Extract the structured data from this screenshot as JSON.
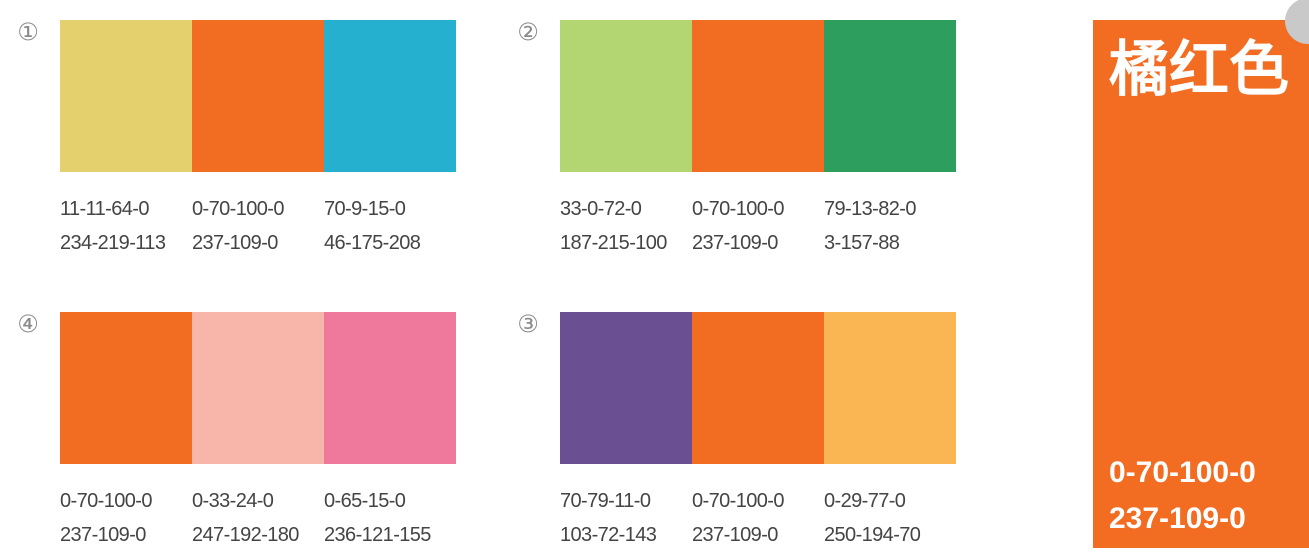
{
  "groups": [
    {
      "number": "①",
      "swatches": [
        {
          "color": "#E4D16E",
          "cmyk": "11-11-64-0",
          "rgb": "234-219-113"
        },
        {
          "color": "#F26C21",
          "cmyk": "0-70-100-0",
          "rgb": "237-109-0"
        },
        {
          "color": "#26B0CF",
          "cmyk": "70-9-15-0",
          "rgb": "46-175-208"
        }
      ]
    },
    {
      "number": "②",
      "swatches": [
        {
          "color": "#B3D672",
          "cmyk": "33-0-72-0",
          "rgb": "187-215-100"
        },
        {
          "color": "#F26C21",
          "cmyk": "0-70-100-0",
          "rgb": "237-109-0"
        },
        {
          "color": "#2E9E5E",
          "cmyk": "79-13-82-0",
          "rgb": "3-157-88"
        }
      ]
    },
    {
      "number": "④",
      "swatches": [
        {
          "color": "#F26C21",
          "cmyk": "0-70-100-0",
          "rgb": "237-109-0"
        },
        {
          "color": "#F8B6AA",
          "cmyk": "0-33-24-0",
          "rgb": "247-192-180"
        },
        {
          "color": "#EF799C",
          "cmyk": "0-65-15-0",
          "rgb": "236-121-155"
        }
      ]
    },
    {
      "number": "③",
      "swatches": [
        {
          "color": "#6A5093",
          "cmyk": "70-79-11-0",
          "rgb": "103-72-143"
        },
        {
          "color": "#F26C21",
          "cmyk": "0-70-100-0",
          "rgb": "237-109-0"
        },
        {
          "color": "#FAB653",
          "cmyk": "0-29-77-0",
          "rgb": "250-194-70"
        }
      ]
    }
  ],
  "panel": {
    "color": "#F26C21",
    "title": "橘红色",
    "cmyk": "0-70-100-0",
    "rgb": "237-109-0"
  }
}
